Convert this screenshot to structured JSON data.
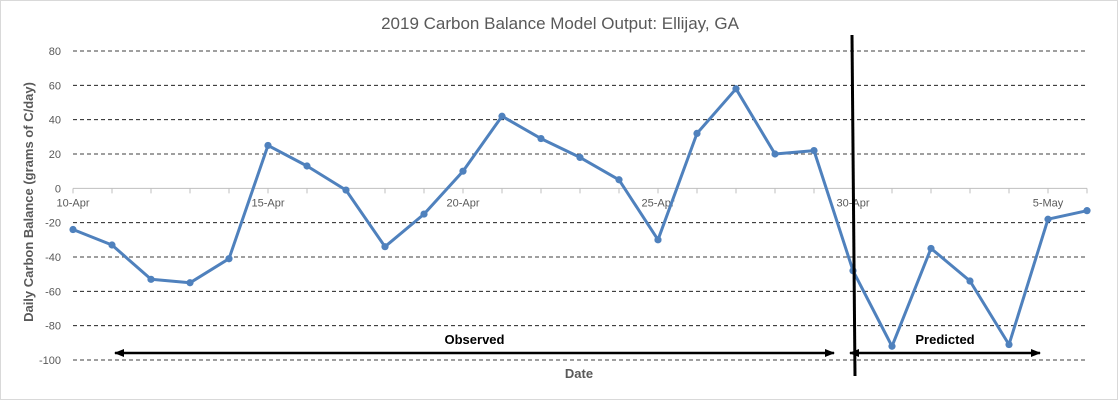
{
  "chart_data": {
    "type": "line",
    "title": "2019 Carbon Balance Model Output: Ellijay, GA",
    "xlabel": "Date",
    "ylabel": "Daily Carbon Balance (grams of C/day)",
    "ylim": [
      -100,
      80
    ],
    "yticks": [
      80,
      60,
      40,
      20,
      0,
      -20,
      -40,
      -60,
      -80,
      -100
    ],
    "xlim": [
      "2019-04-10",
      "2019-05-06"
    ],
    "xtick_labels": [
      {
        "date": "2019-04-10",
        "label": "10-Apr"
      },
      {
        "date": "2019-04-15",
        "label": "15-Apr"
      },
      {
        "date": "2019-04-20",
        "label": "20-Apr"
      },
      {
        "date": "2019-04-25",
        "label": "25-Apr"
      },
      {
        "date": "2019-04-30",
        "label": "30-Apr"
      },
      {
        "date": "2019-05-05",
        "label": "5-May"
      }
    ],
    "grid": "horizontal dashed",
    "line_color": "#4f81bd",
    "series": [
      {
        "x": [
          "2019-04-10",
          "2019-04-11",
          "2019-04-12",
          "2019-04-13",
          "2019-04-14",
          "2019-04-15",
          "2019-04-16",
          "2019-04-17",
          "2019-04-18",
          "2019-04-19",
          "2019-04-20",
          "2019-04-21",
          "2019-04-22",
          "2019-04-23",
          "2019-04-24",
          "2019-04-25",
          "2019-04-26",
          "2019-04-27",
          "2019-04-28",
          "2019-04-29",
          "2019-04-30",
          "2019-05-01",
          "2019-05-02",
          "2019-05-03",
          "2019-05-04",
          "2019-05-05",
          "2019-05-06"
        ],
        "values": [
          -24,
          -33,
          -53,
          -55,
          -41,
          25,
          13,
          -1,
          -34,
          -15,
          10,
          42,
          29,
          18,
          5,
          -30,
          32,
          58,
          20,
          22,
          -48,
          -92,
          -35,
          -54,
          -91,
          -18,
          -13
        ]
      }
    ],
    "annotations": {
      "divider_date": "2019-04-30",
      "observed": {
        "label": "Observed",
        "from": "2019-04-11",
        "to": "2019-04-29"
      },
      "predicted": {
        "label": "Predicted",
        "from": "2019-04-30",
        "to": "2019-05-05"
      }
    }
  }
}
